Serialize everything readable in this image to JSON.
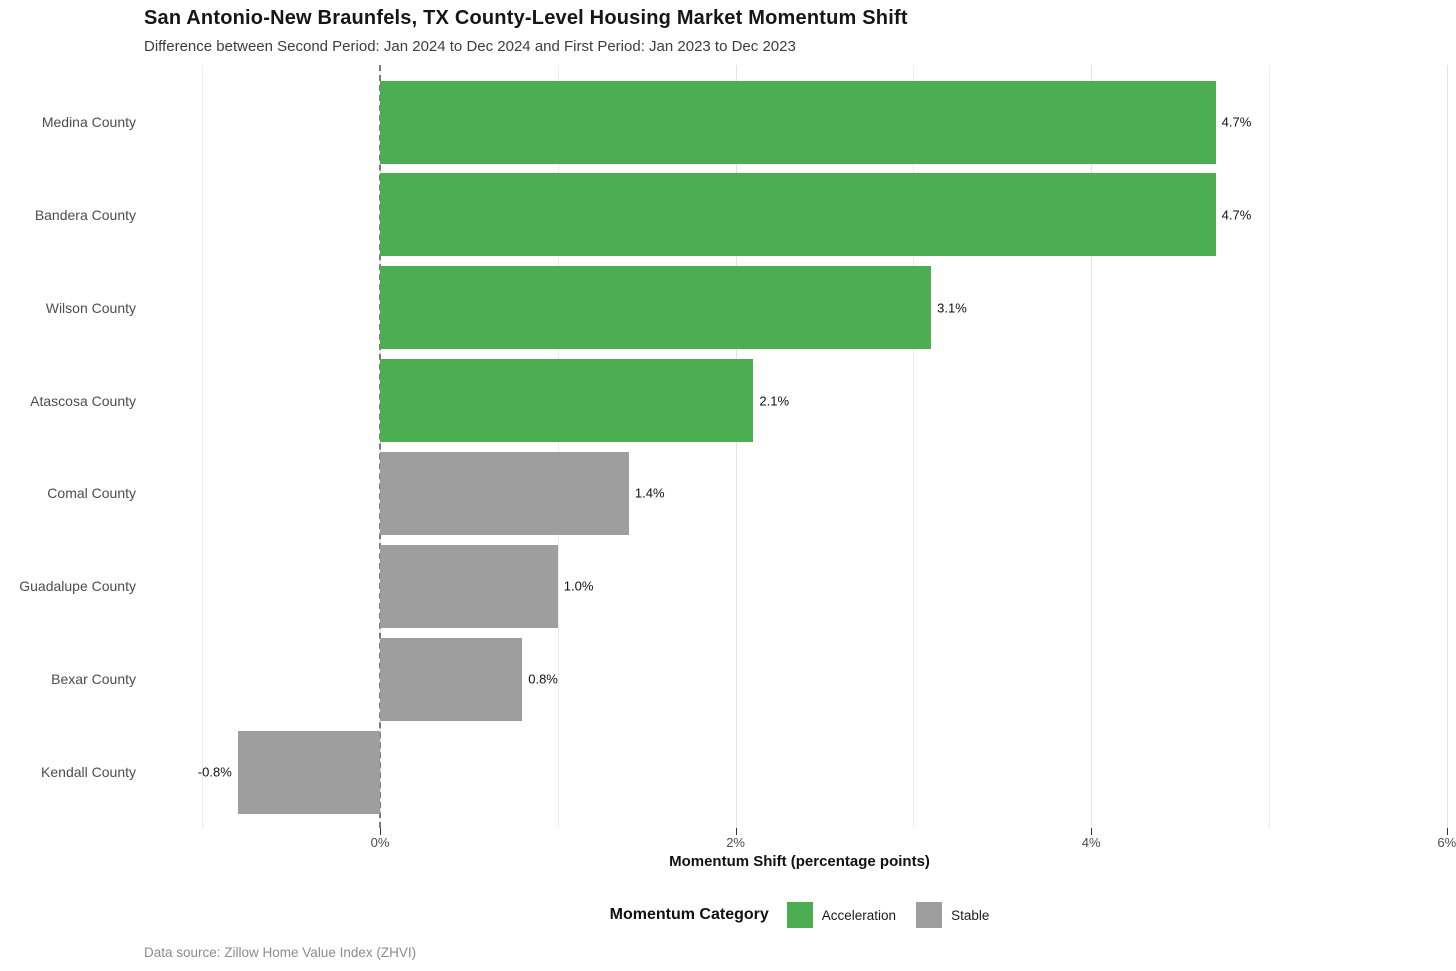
{
  "header": {
    "title": "San Antonio-New Braunfels, TX County-Level Housing Market Momentum Shift",
    "subtitle": "Difference between Second Period: Jan 2024 to Dec 2024 and First Period: Jan 2023 to Dec 2023"
  },
  "chart_data": {
    "type": "bar",
    "orientation": "horizontal",
    "categories": [
      "Medina County",
      "Bandera County",
      "Wilson County",
      "Atascosa County",
      "Comal County",
      "Guadalupe County",
      "Bexar County",
      "Kendall County"
    ],
    "values": [
      4.7,
      4.7,
      3.1,
      2.1,
      1.4,
      1.0,
      0.8,
      -0.8
    ],
    "value_labels": [
      "4.7%",
      "4.7%",
      "3.1%",
      "2.1%",
      "1.4%",
      "1.0%",
      "0.8%",
      "-0.8%"
    ],
    "bar_groups": [
      "Acceleration",
      "Acceleration",
      "Acceleration",
      "Acceleration",
      "Stable",
      "Stable",
      "Stable",
      "Stable"
    ],
    "xlabel": "Momentum Shift (percentage points)",
    "ylabel": "",
    "xlim": [
      -1.33,
      6.05
    ],
    "x_ticks": [
      0,
      2,
      4,
      6
    ],
    "x_tick_labels": [
      "0%",
      "2%",
      "4%",
      "6%"
    ],
    "minor_gridlines": [
      -1,
      1,
      3,
      5
    ],
    "zero_reference_line": 0,
    "grid": true,
    "legend_position": "bottom",
    "bar_label_position": "outside-end"
  },
  "legend": {
    "title": "Momentum Category",
    "items": [
      {
        "label": "Acceleration",
        "color": "#4cae50"
      },
      {
        "label": "Stable",
        "color": "#9e9e9e"
      }
    ]
  },
  "caption": "Data source: Zillow Home Value Index (ZHVI)",
  "colors": {
    "Acceleration": "#4cae50",
    "Stable": "#9e9e9e",
    "grid_major": "#e3e3e3",
    "grid_minor": "#ededed",
    "zero_line": "#7b7b7b",
    "value_label": "#111111",
    "axis_text": "#4d4d4d"
  }
}
